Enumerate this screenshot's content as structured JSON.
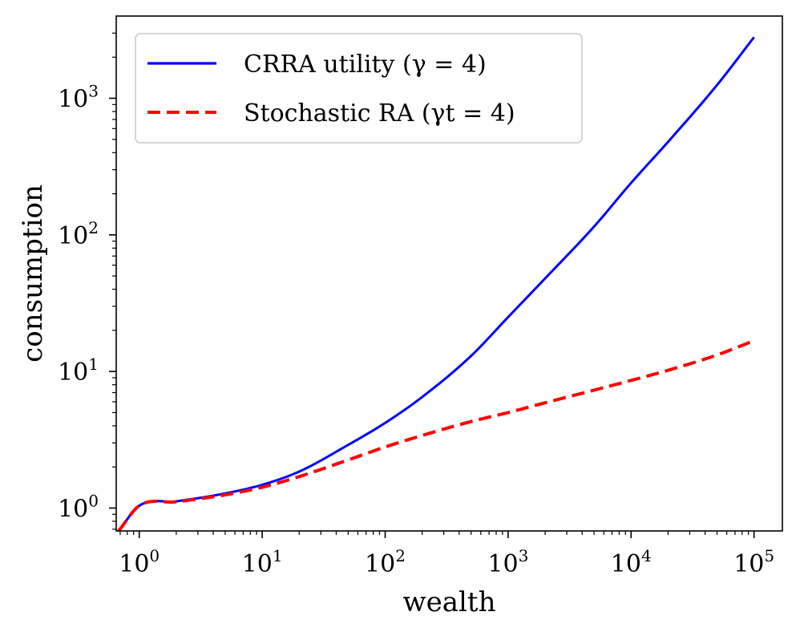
{
  "chart_data": {
    "type": "line",
    "title": "",
    "xlabel": "wealth",
    "ylabel": "consumption",
    "xscale": "log",
    "yscale": "log",
    "xlim": [
      0.65,
      170000
    ],
    "ylim": [
      0.68,
      4000
    ],
    "grid": false,
    "legend_position": "top-left",
    "x_ticks": [
      {
        "base": "10",
        "exp": "0",
        "value": 1
      },
      {
        "base": "10",
        "exp": "1",
        "value": 10
      },
      {
        "base": "10",
        "exp": "2",
        "value": 100
      },
      {
        "base": "10",
        "exp": "3",
        "value": 1000
      },
      {
        "base": "10",
        "exp": "4",
        "value": 10000
      },
      {
        "base": "10",
        "exp": "5",
        "value": 100000
      }
    ],
    "y_ticks": [
      {
        "base": "10",
        "exp": "0",
        "value": 1
      },
      {
        "base": "10",
        "exp": "1",
        "value": 10
      },
      {
        "base": "10",
        "exp": "2",
        "value": 100
      },
      {
        "base": "10",
        "exp": "3",
        "value": 1000
      }
    ],
    "series": [
      {
        "name": "CRRA utility (γ = 4)",
        "legend_label": "CRRA utility (γ = 4)",
        "color": "#0000ff",
        "style": "solid",
        "x": [
          0.68,
          1.0,
          2.0,
          5.0,
          10,
          20,
          50,
          100,
          200,
          500,
          1000,
          2000,
          5000,
          10000,
          20000,
          50000,
          100000
        ],
        "y": [
          0.68,
          1.04,
          1.12,
          1.28,
          1.48,
          1.85,
          2.9,
          4.2,
          6.5,
          13,
          25,
          48,
          115,
          240,
          480,
          1250,
          2800
        ]
      },
      {
        "name": "Stochastic RA (γ_t = 4)",
        "legend_label": "Stochastic RA (γt = 4)",
        "color": "#ff0000",
        "style": "dashed",
        "x": [
          0.68,
          1.0,
          2.0,
          5.0,
          10,
          20,
          50,
          100,
          200,
          500,
          1000,
          2000,
          5000,
          10000,
          20000,
          50000,
          100000
        ],
        "y": [
          0.68,
          1.04,
          1.11,
          1.25,
          1.42,
          1.7,
          2.25,
          2.8,
          3.4,
          4.3,
          5.0,
          5.9,
          7.3,
          8.6,
          10.2,
          13.2,
          16.8
        ]
      }
    ]
  }
}
